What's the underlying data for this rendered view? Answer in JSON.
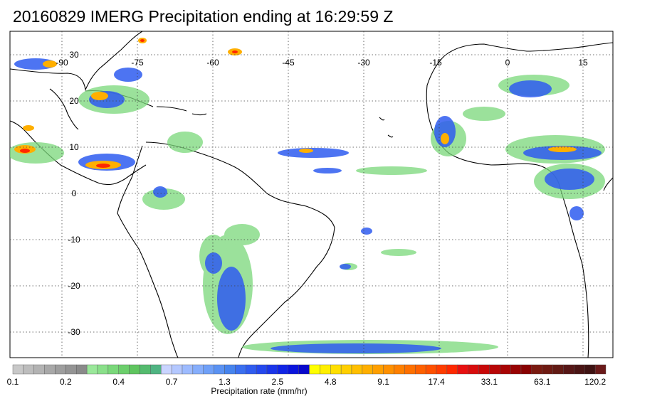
{
  "title": "20160829 IMERG Precipitation ending at 16:29:59 Z",
  "map": {
    "lon_ticks": [
      "-90",
      "-75",
      "-60",
      "-45",
      "-30",
      "-15",
      "0",
      "15"
    ],
    "lat_ticks": [
      "30",
      "20",
      "10",
      "0",
      "-10",
      "-20",
      "-30"
    ],
    "lon_range": [
      -102,
      18
    ],
    "lat_range": [
      -38,
      38
    ],
    "land_outline_color": "#000000",
    "grid_style": "dotted"
  },
  "colorbar": {
    "title": "Precipitation rate (mm/hr)",
    "labels": [
      "0.1",
      "0.2",
      "0.4",
      "0.7",
      "1.3",
      "2.5",
      "4.8",
      "9.1",
      "17.4",
      "33.1",
      "63.1",
      "120.2"
    ],
    "colors": [
      "#c8c8c8",
      "#bdbdbd",
      "#b3b3b3",
      "#a8a8a8",
      "#9e9e9e",
      "#949494",
      "#8a8a8a",
      "#9ae89a",
      "#8ae08a",
      "#7ad87a",
      "#6ccf6c",
      "#5fc55f",
      "#54bb6e",
      "#4fb482",
      "#c9d4ff",
      "#b4c8ff",
      "#9dbbff",
      "#86aefc",
      "#6fa0f8",
      "#5a92f3",
      "#4684ee",
      "#3a6ff0",
      "#2f5cf0",
      "#2448ee",
      "#1a35ea",
      "#1024e6",
      "#0a14dd",
      "#0808cc",
      "#ffff00",
      "#ffef00",
      "#ffdf00",
      "#ffcf00",
      "#ffbf00",
      "#ffaf00",
      "#ff9f00",
      "#ff9000",
      "#ff8000",
      "#ff7000",
      "#ff6000",
      "#ff5000",
      "#ff3c00",
      "#ff2800",
      "#e81010",
      "#d80c0c",
      "#c80808",
      "#b80606",
      "#a80404",
      "#980303",
      "#880202",
      "#7a1a10",
      "#6e1a12",
      "#621a14",
      "#561616",
      "#4a1414",
      "#3e1212",
      "#6a1a1a"
    ]
  }
}
